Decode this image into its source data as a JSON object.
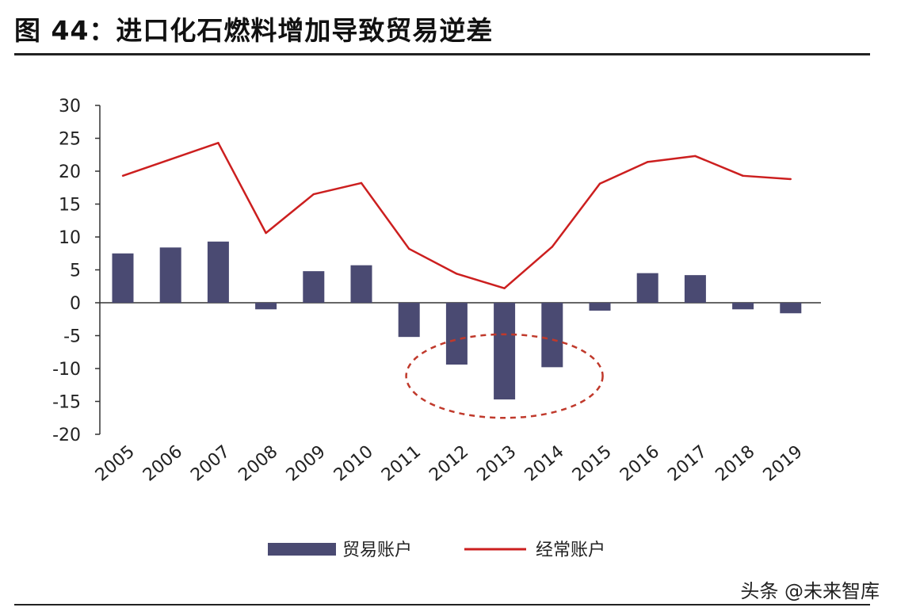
{
  "title": "图 44：进口化石燃料增加导致贸易逆差",
  "watermark": "头条 @未来智库",
  "colors": {
    "bar": "#4a4a72",
    "line": "#cc1f1f",
    "highlight": "#c0392b",
    "axis": "#333333"
  },
  "chart_data": {
    "type": "bar",
    "categories": [
      "2005",
      "2006",
      "2007",
      "2008",
      "2009",
      "2010",
      "2011",
      "2012",
      "2013",
      "2014",
      "2015",
      "2016",
      "2017",
      "2018",
      "2019"
    ],
    "series": [
      {
        "name": "贸易账户",
        "type": "bar",
        "values": [
          7.5,
          8.4,
          9.3,
          -1.0,
          4.8,
          5.7,
          -5.2,
          -9.4,
          -14.7,
          -9.8,
          -1.2,
          4.5,
          4.2,
          -1.0,
          -1.6
        ]
      },
      {
        "name": "经常账户",
        "type": "line",
        "values": [
          19.3,
          21.8,
          24.3,
          10.6,
          16.5,
          18.2,
          8.2,
          4.4,
          2.2,
          8.5,
          18.1,
          21.4,
          22.3,
          19.3,
          18.8
        ]
      }
    ],
    "ylim": [
      -20,
      30
    ],
    "yticks": [
      30,
      25,
      20,
      15,
      10,
      5,
      0,
      -5,
      -10,
      -15,
      -20
    ],
    "legend_position": "bottom",
    "annotation": {
      "type": "dashed-ellipse",
      "around": [
        "2012",
        "2013",
        "2014"
      ]
    }
  }
}
